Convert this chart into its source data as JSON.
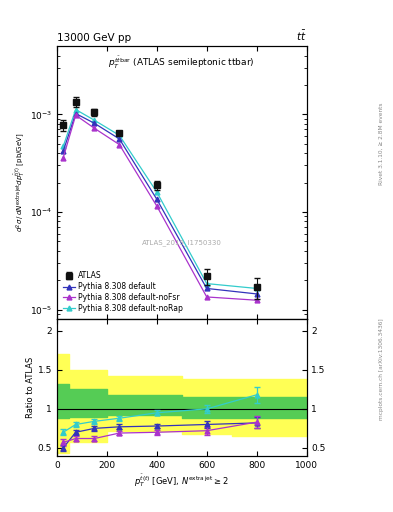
{
  "atlas_x": [
    25,
    75,
    150,
    250,
    400,
    600,
    800
  ],
  "atlas_y": [
    0.00078,
    0.00135,
    0.00105,
    0.00065,
    0.00019,
    2.2e-05,
    1.7e-05
  ],
  "atlas_yerr_lo": [
    0.0001,
    0.00015,
    9e-05,
    7e-06,
    2e-05,
    4e-06,
    4e-06
  ],
  "atlas_yerr_hi": [
    0.0001,
    0.00015,
    9e-05,
    7e-06,
    2e-05,
    4e-06,
    4e-06
  ],
  "py_default_x": [
    25,
    75,
    150,
    250,
    400,
    600,
    800
  ],
  "py_default_y": [
    0.00042,
    0.00102,
    0.00081,
    0.00056,
    0.000135,
    1.65e-05,
    1.45e-05
  ],
  "py_default_color": "#3333bb",
  "py_nofsr_x": [
    25,
    75,
    150,
    250,
    400,
    600,
    800
  ],
  "py_nofsr_y": [
    0.00036,
    0.00098,
    0.00072,
    0.00049,
    0.000115,
    1.35e-05,
    1.25e-05
  ],
  "py_nofsr_color": "#aa33cc",
  "py_norap_x": [
    25,
    75,
    150,
    250,
    400,
    600,
    800
  ],
  "py_norap_y": [
    0.00047,
    0.00112,
    0.00087,
    0.00061,
    0.00016,
    1.85e-05,
    1.65e-05
  ],
  "py_norap_color": "#33cccc",
  "ratio_default_x": [
    25,
    75,
    150,
    250,
    400,
    600,
    800
  ],
  "ratio_default_y": [
    0.5,
    0.7,
    0.75,
    0.77,
    0.78,
    0.8,
    0.82
  ],
  "ratio_default_yerr": [
    0.04,
    0.03,
    0.03,
    0.03,
    0.03,
    0.05,
    0.07
  ],
  "ratio_nofsr_x": [
    25,
    75,
    150,
    250,
    400,
    600,
    800
  ],
  "ratio_nofsr_y": [
    0.57,
    0.62,
    0.62,
    0.69,
    0.7,
    0.72,
    0.83
  ],
  "ratio_nofsr_yerr": [
    0.04,
    0.03,
    0.03,
    0.03,
    0.03,
    0.05,
    0.08
  ],
  "ratio_norap_x": [
    25,
    75,
    150,
    250,
    400,
    600,
    800
  ],
  "ratio_norap_y": [
    0.7,
    0.8,
    0.84,
    0.88,
    0.95,
    1.0,
    1.18
  ],
  "ratio_norap_yerr": [
    0.04,
    0.03,
    0.03,
    0.03,
    0.03,
    0.05,
    0.1
  ],
  "band_edges": [
    0,
    50,
    200,
    500,
    700,
    1000
  ],
  "band_green_lo": [
    0.88,
    0.9,
    0.92,
    0.88,
    0.88,
    0.88
  ],
  "band_green_hi": [
    1.32,
    1.25,
    1.18,
    1.15,
    1.15,
    1.15
  ],
  "band_yellow_lo": [
    0.44,
    0.58,
    0.72,
    0.68,
    0.65,
    0.65
  ],
  "band_yellow_hi": [
    1.7,
    1.5,
    1.42,
    1.38,
    1.38,
    1.38
  ],
  "xlim": [
    0,
    1000
  ],
  "ylim_main_lo": 8e-06,
  "ylim_main_hi": 0.005,
  "ylim_ratio_lo": 0.4,
  "ylim_ratio_hi": 2.15,
  "atlas_color": "#111111",
  "atlas_marker": "s",
  "atlas_markersize": 4.5
}
